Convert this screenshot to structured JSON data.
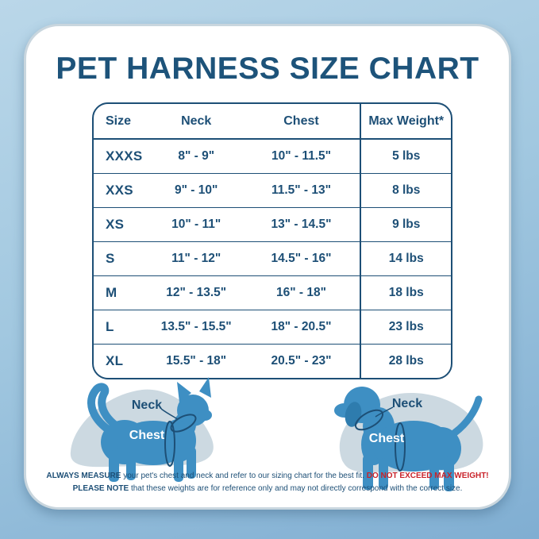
{
  "chart_data": {
    "type": "table",
    "title": "PET HARNESS SIZE CHART",
    "columns": [
      "Size",
      "Neck",
      "Chest",
      "Max Weight*"
    ],
    "rows": [
      [
        "XXXS",
        "8\" - 9\"",
        "10\" - 11.5\"",
        "5 lbs"
      ],
      [
        "XXS",
        "9\" - 10\"",
        "11.5\" - 13\"",
        "8 lbs"
      ],
      [
        "XS",
        "10\" - 11\"",
        "13\" - 14.5\"",
        "9 lbs"
      ],
      [
        "S",
        "11\" - 12\"",
        "14.5\" - 16\"",
        "14 lbs"
      ],
      [
        "M",
        "12\" - 13.5\"",
        "16\" - 18\"",
        "18 lbs"
      ],
      [
        "L",
        "13.5\" - 15.5\"",
        "18\" - 20.5\"",
        "23 lbs"
      ],
      [
        "XL",
        "15.5\" - 18\"",
        "20.5\" - 23\"",
        "28 lbs"
      ]
    ]
  },
  "diagrams": {
    "cat": {
      "neck_label": "Neck",
      "chest_label": "Chest"
    },
    "dog": {
      "neck_label": "Neck",
      "chest_label": "Chest"
    }
  },
  "footer": {
    "line1_bold": "ALWAYS MEASURE",
    "line1_text": " your pet's chest and neck and refer to our sizing chart for the best fit. ",
    "line1_warning": "DO NOT EXCEED MAX WEIGHT!",
    "line2_bold": "PLEASE NOTE",
    "line2_text": " that these weights are for reference only and may not directly correspond with the correct size."
  },
  "colors": {
    "navy": "#1d4f76",
    "warning_red": "#c9232a",
    "pet_body_blue": "#3e8fc3",
    "blob_gray_blue": "#ccd9e1",
    "background_top": "#bad7e9",
    "background_bottom": "#80aed2",
    "card_white": "#ffffff"
  }
}
